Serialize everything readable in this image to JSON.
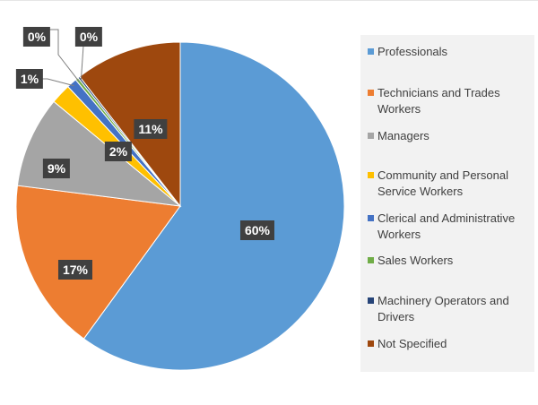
{
  "chart_data": {
    "type": "pie",
    "title": "",
    "legend_position": "right",
    "start_angle_deg": 0,
    "direction": "clockwise",
    "slices": [
      {
        "name": "Professionals",
        "value": 60,
        "label": "60%",
        "color": "#5b9bd5"
      },
      {
        "name": "Technicians and Trades Workers",
        "value": 17,
        "label": "17%",
        "color": "#ed7d31"
      },
      {
        "name": "Managers",
        "value": 9,
        "label": "9%",
        "color": "#a5a5a5"
      },
      {
        "name": "Community and Personal Service Workers",
        "value": 2,
        "label": "2%",
        "color": "#ffc000"
      },
      {
        "name": "Clerical and Administrative Workers",
        "value": 1,
        "label": "1%",
        "color": "#4472c4"
      },
      {
        "name": "Sales Workers",
        "value": 0.3,
        "label": "0%",
        "color": "#70ad47"
      },
      {
        "name": "Machinery Operators and Drivers",
        "value": 0.2,
        "label": "0%",
        "color": "#264478"
      },
      {
        "name": "Not Specified",
        "value": 10.5,
        "label": "11%",
        "color": "#9e480e"
      }
    ]
  }
}
